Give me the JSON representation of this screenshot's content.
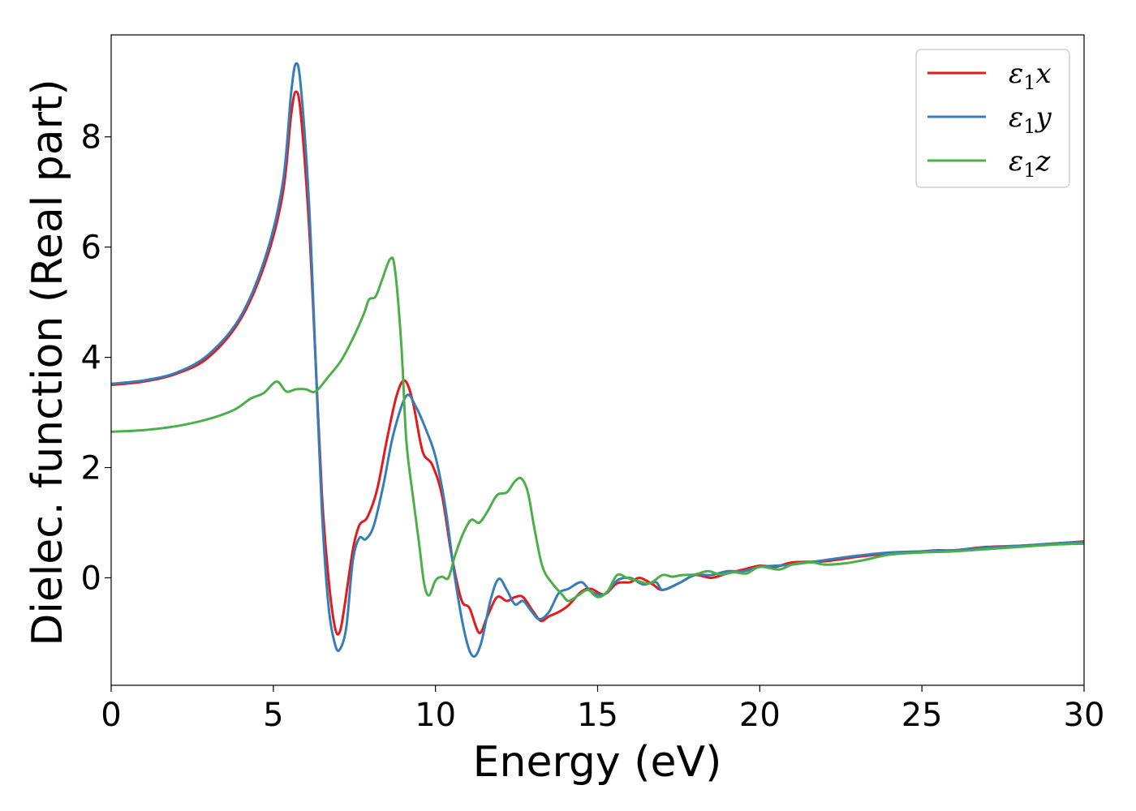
{
  "chart_data": {
    "type": "line",
    "title": "",
    "xlabel": "Energy (eV)",
    "ylabel": "Dielec. function (Real part)",
    "xlim": [
      0,
      30
    ],
    "ylim": [
      -1.95,
      9.85
    ],
    "xticks": [
      "0",
      "5",
      "10",
      "15",
      "20",
      "25",
      "30"
    ],
    "yticks": [
      "0",
      "2",
      "4",
      "6",
      "8"
    ],
    "grid": false,
    "legend_position": "top-right",
    "series": [
      {
        "name": "ε₁x",
        "legend_main": "ε",
        "legend_sub": "1",
        "legend_suffix": "x",
        "color": "#e41a1c",
        "points": [
          [
            0,
            3.5
          ],
          [
            1,
            3.56
          ],
          [
            2,
            3.7
          ],
          [
            3,
            4.0
          ],
          [
            4,
            4.7
          ],
          [
            4.8,
            5.8
          ],
          [
            5.3,
            7.0
          ],
          [
            5.55,
            8.4
          ],
          [
            5.7,
            8.82
          ],
          [
            5.85,
            8.4
          ],
          [
            6.1,
            6.4
          ],
          [
            6.3,
            4.0
          ],
          [
            6.5,
            1.5
          ],
          [
            6.7,
            0.0
          ],
          [
            6.9,
            -0.9
          ],
          [
            7.05,
            -0.98
          ],
          [
            7.2,
            -0.5
          ],
          [
            7.45,
            0.5
          ],
          [
            7.65,
            0.95
          ],
          [
            7.9,
            1.1
          ],
          [
            8.2,
            1.6
          ],
          [
            8.5,
            2.5
          ],
          [
            8.8,
            3.3
          ],
          [
            9.05,
            3.58
          ],
          [
            9.3,
            3.2
          ],
          [
            9.6,
            2.3
          ],
          [
            9.9,
            2.05
          ],
          [
            10.2,
            1.5
          ],
          [
            10.5,
            0.4
          ],
          [
            10.8,
            -0.4
          ],
          [
            11.05,
            -0.55
          ],
          [
            11.35,
            -1.0
          ],
          [
            11.6,
            -0.7
          ],
          [
            11.9,
            -0.35
          ],
          [
            12.2,
            -0.42
          ],
          [
            12.45,
            -0.35
          ],
          [
            12.7,
            -0.35
          ],
          [
            13.0,
            -0.6
          ],
          [
            13.25,
            -0.78
          ],
          [
            13.5,
            -0.7
          ],
          [
            13.8,
            -0.62
          ],
          [
            14.1,
            -0.5
          ],
          [
            14.5,
            -0.25
          ],
          [
            14.8,
            -0.2
          ],
          [
            15.2,
            -0.3
          ],
          [
            15.6,
            -0.1
          ],
          [
            16.0,
            -0.08
          ],
          [
            16.3,
            0.0
          ],
          [
            16.7,
            -0.12
          ],
          [
            17.0,
            -0.22
          ],
          [
            17.5,
            -0.1
          ],
          [
            18.0,
            0.05
          ],
          [
            18.5,
            0.0
          ],
          [
            19.0,
            0.08
          ],
          [
            19.5,
            0.15
          ],
          [
            20.0,
            0.22
          ],
          [
            20.5,
            0.2
          ],
          [
            21.0,
            0.28
          ],
          [
            22.0,
            0.3
          ],
          [
            23.0,
            0.38
          ],
          [
            24.0,
            0.44
          ],
          [
            25.0,
            0.48
          ],
          [
            25.5,
            0.5
          ],
          [
            26.0,
            0.5
          ],
          [
            27.0,
            0.56
          ],
          [
            28.0,
            0.58
          ],
          [
            29.0,
            0.62
          ],
          [
            30.0,
            0.66
          ]
        ]
      },
      {
        "name": "ε₁y",
        "legend_main": "ε",
        "legend_sub": "1",
        "legend_suffix": "y",
        "color": "#377eb8",
        "points": [
          [
            0,
            3.52
          ],
          [
            1,
            3.58
          ],
          [
            2,
            3.72
          ],
          [
            3,
            4.05
          ],
          [
            4,
            4.75
          ],
          [
            4.8,
            5.9
          ],
          [
            5.3,
            7.2
          ],
          [
            5.55,
            8.8
          ],
          [
            5.7,
            9.33
          ],
          [
            5.85,
            8.9
          ],
          [
            6.1,
            6.8
          ],
          [
            6.3,
            4.0
          ],
          [
            6.5,
            1.2
          ],
          [
            6.7,
            -0.5
          ],
          [
            6.9,
            -1.2
          ],
          [
            7.05,
            -1.3
          ],
          [
            7.25,
            -0.9
          ],
          [
            7.45,
            0.3
          ],
          [
            7.65,
            0.72
          ],
          [
            7.85,
            0.7
          ],
          [
            8.1,
            0.95
          ],
          [
            8.4,
            1.7
          ],
          [
            8.7,
            2.6
          ],
          [
            9.1,
            3.3
          ],
          [
            9.4,
            3.1
          ],
          [
            9.7,
            2.7
          ],
          [
            10.0,
            2.2
          ],
          [
            10.3,
            1.3
          ],
          [
            10.6,
            0.0
          ],
          [
            10.9,
            -1.0
          ],
          [
            11.15,
            -1.42
          ],
          [
            11.4,
            -1.2
          ],
          [
            11.7,
            -0.4
          ],
          [
            11.95,
            -0.02
          ],
          [
            12.2,
            -0.22
          ],
          [
            12.45,
            -0.48
          ],
          [
            12.7,
            -0.42
          ],
          [
            12.95,
            -0.6
          ],
          [
            13.2,
            -0.75
          ],
          [
            13.5,
            -0.62
          ],
          [
            13.8,
            -0.28
          ],
          [
            14.1,
            -0.2
          ],
          [
            14.5,
            -0.08
          ],
          [
            14.8,
            -0.25
          ],
          [
            15.2,
            -0.3
          ],
          [
            15.6,
            -0.05
          ],
          [
            16.0,
            0.0
          ],
          [
            16.4,
            -0.12
          ],
          [
            16.8,
            -0.08
          ],
          [
            17.0,
            -0.22
          ],
          [
            17.5,
            -0.1
          ],
          [
            18.0,
            0.05
          ],
          [
            18.5,
            0.05
          ],
          [
            19.0,
            0.12
          ],
          [
            19.5,
            0.12
          ],
          [
            20.0,
            0.2
          ],
          [
            20.5,
            0.22
          ],
          [
            21.0,
            0.24
          ],
          [
            22.0,
            0.32
          ],
          [
            23.0,
            0.4
          ],
          [
            24.0,
            0.46
          ],
          [
            25.0,
            0.48
          ],
          [
            26.0,
            0.5
          ],
          [
            27.0,
            0.55
          ],
          [
            28.0,
            0.58
          ],
          [
            29.0,
            0.62
          ],
          [
            30.0,
            0.65
          ]
        ]
      },
      {
        "name": "ε₁z",
        "legend_main": "ε",
        "legend_sub": "1",
        "legend_suffix": "z",
        "color": "#4daf4a",
        "points": [
          [
            0,
            2.65
          ],
          [
            1,
            2.68
          ],
          [
            2,
            2.75
          ],
          [
            3,
            2.88
          ],
          [
            3.8,
            3.05
          ],
          [
            4.3,
            3.25
          ],
          [
            4.7,
            3.35
          ],
          [
            5.1,
            3.56
          ],
          [
            5.4,
            3.38
          ],
          [
            5.7,
            3.42
          ],
          [
            6.0,
            3.42
          ],
          [
            6.3,
            3.38
          ],
          [
            6.7,
            3.65
          ],
          [
            7.1,
            3.95
          ],
          [
            7.5,
            4.4
          ],
          [
            7.8,
            4.8
          ],
          [
            7.95,
            5.05
          ],
          [
            8.15,
            5.1
          ],
          [
            8.35,
            5.4
          ],
          [
            8.6,
            5.78
          ],
          [
            8.75,
            5.6
          ],
          [
            8.95,
            4.2
          ],
          [
            9.1,
            2.5
          ],
          [
            9.3,
            1.5
          ],
          [
            9.5,
            0.6
          ],
          [
            9.65,
            -0.1
          ],
          [
            9.8,
            -0.32
          ],
          [
            10.0,
            -0.05
          ],
          [
            10.2,
            0.02
          ],
          [
            10.4,
            0.0
          ],
          [
            10.6,
            0.4
          ],
          [
            10.85,
            0.8
          ],
          [
            11.1,
            1.05
          ],
          [
            11.35,
            1.0
          ],
          [
            11.6,
            1.2
          ],
          [
            11.9,
            1.5
          ],
          [
            12.2,
            1.55
          ],
          [
            12.45,
            1.75
          ],
          [
            12.65,
            1.8
          ],
          [
            12.85,
            1.55
          ],
          [
            13.05,
            0.9
          ],
          [
            13.3,
            0.2
          ],
          [
            13.6,
            -0.1
          ],
          [
            13.9,
            -0.3
          ],
          [
            14.1,
            -0.42
          ],
          [
            14.4,
            -0.32
          ],
          [
            14.7,
            -0.22
          ],
          [
            15.0,
            -0.35
          ],
          [
            15.3,
            -0.25
          ],
          [
            15.6,
            0.05
          ],
          [
            15.9,
            0.0
          ],
          [
            16.2,
            -0.05
          ],
          [
            16.6,
            -0.1
          ],
          [
            17.0,
            0.05
          ],
          [
            17.3,
            0.02
          ],
          [
            17.6,
            0.05
          ],
          [
            18.0,
            0.06
          ],
          [
            18.4,
            0.12
          ],
          [
            18.8,
            0.06
          ],
          [
            19.2,
            0.1
          ],
          [
            19.6,
            0.08
          ],
          [
            20.0,
            0.2
          ],
          [
            20.6,
            0.15
          ],
          [
            21.0,
            0.24
          ],
          [
            21.6,
            0.28
          ],
          [
            22.0,
            0.24
          ],
          [
            22.6,
            0.26
          ],
          [
            23.2,
            0.32
          ],
          [
            24.0,
            0.42
          ],
          [
            25.0,
            0.46
          ],
          [
            26.0,
            0.48
          ],
          [
            27.0,
            0.52
          ],
          [
            28.0,
            0.56
          ],
          [
            29.0,
            0.6
          ],
          [
            30.0,
            0.62
          ]
        ]
      }
    ]
  }
}
